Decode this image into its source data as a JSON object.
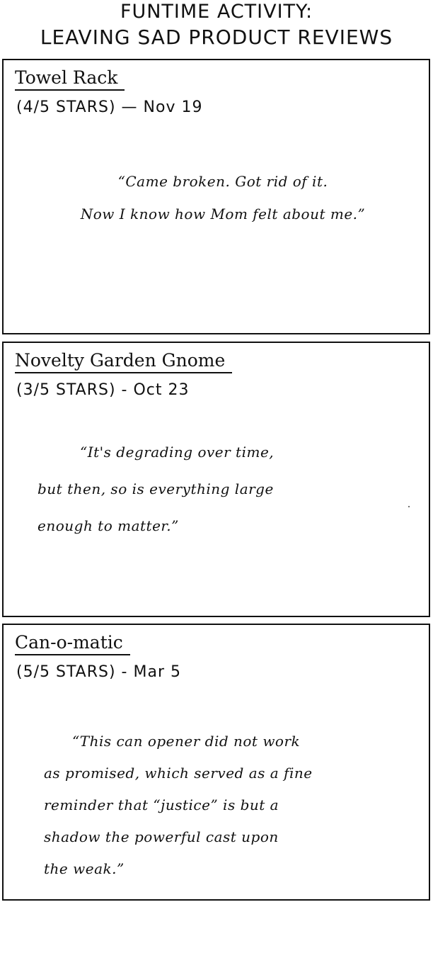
{
  "comic": {
    "title_line1": "FUNTIME ACTIVITY:",
    "title_line2": "LEAVING SAD PRODUCT REVIEWS"
  },
  "reviews": [
    {
      "product": "Towel Rack",
      "rating_text": "(4/5 STARS) — Nov 19",
      "rating_value": 4,
      "rating_max": 5,
      "text": "“Came broken. Got rid of it. Now I know how Mom felt about me.”"
    },
    {
      "product": "Novelty Garden Gnome",
      "rating_text": "(3/5 STARS) - Oct 23",
      "rating_value": 3,
      "rating_max": 5,
      "text": "“It's degrading over time, but then, so is everything large enough to matter.”"
    },
    {
      "product": "Can-o-matic",
      "rating_text": "(5/5 STARS) - Mar 5",
      "rating_value": 5,
      "rating_max": 5,
      "text": "“This can opener did not work as promised, which served as a fine reminder that “justice” is but a shadow the powerful cast upon the weak.”"
    }
  ]
}
